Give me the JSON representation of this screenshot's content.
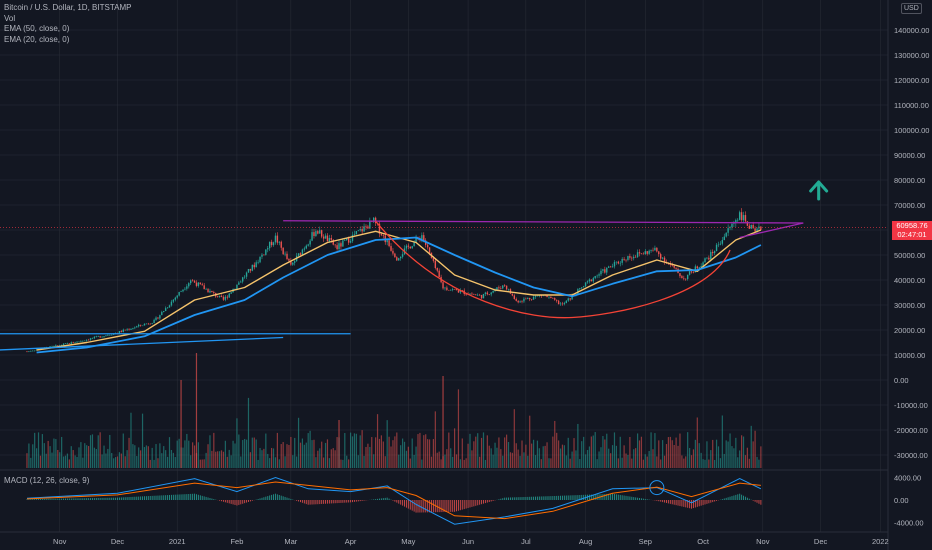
{
  "legend": {
    "symbol": "Bitcoin / U.S. Dollar, 1D, BITSTAMP",
    "vol": "Vol",
    "ema50": "EMA (50, close, 0)",
    "ema20": "EMA (20, close, 0)",
    "macd": "MACD (12, 26, close, 9)"
  },
  "currency_badge": "USD",
  "last_price": {
    "value": "60958.76",
    "countdown": "02:47:01"
  },
  "colors": {
    "background": "#131722",
    "up": "#26a69a",
    "down": "#ef5350",
    "ema20": "#f5c36b",
    "ema50": "#2196f3",
    "resistance": "#9c27b0",
    "cup": "#f44336",
    "arrow": "#22ab94",
    "price_tag": "#f23645"
  },
  "icons": {
    "target": "up-arrow-icon"
  },
  "chart_data": [
    {
      "type": "candlestick",
      "title": "Bitcoin / U.S. Dollar, 1D, BITSTAMP",
      "x_ticks": [
        "Nov",
        "Dec",
        "2021",
        "Feb",
        "Mar",
        "Apr",
        "May",
        "Jun",
        "Jul",
        "Aug",
        "Sep",
        "Oct",
        "Nov",
        "Dec",
        "2022"
      ],
      "y_ticks": [
        "140000.00",
        "130000.00",
        "120000.00",
        "110000.00",
        "100000.00",
        "90000.00",
        "80000.00",
        "70000.00",
        "60000.00",
        "50000.00",
        "40000.00",
        "30000.00",
        "20000.00",
        "10000.00",
        "0.00",
        "-10000.00",
        "-20000.00",
        "-30000.00"
      ],
      "ylim": [
        -34000,
        150000
      ],
      "series": [
        {
          "name": "EMA (20, close, 0)",
          "x": [
            "2020-10-20",
            "2020-11-15",
            "2020-12-15",
            "2021-01-10",
            "2021-02-05",
            "2021-02-25",
            "2021-03-20",
            "2021-04-14",
            "2021-05-05",
            "2021-05-25",
            "2021-06-15",
            "2021-07-05",
            "2021-07-25",
            "2021-08-15",
            "2021-09-07",
            "2021-09-28",
            "2021-10-18",
            "2021-10-31"
          ],
          "values": [
            12000,
            15000,
            19500,
            32000,
            37000,
            46000,
            55000,
            59500,
            55000,
            42000,
            36000,
            34000,
            34000,
            42000,
            48000,
            43500,
            56000,
            60000
          ]
        },
        {
          "name": "EMA (50, close, 0)",
          "x": [
            "2020-10-20",
            "2020-11-15",
            "2020-12-15",
            "2021-01-10",
            "2021-02-05",
            "2021-02-25",
            "2021-03-20",
            "2021-04-14",
            "2021-05-05",
            "2021-05-25",
            "2021-06-15",
            "2021-07-05",
            "2021-07-25",
            "2021-08-15",
            "2021-09-07",
            "2021-09-28",
            "2021-10-18",
            "2021-10-31"
          ],
          "values": [
            11000,
            13000,
            17500,
            26000,
            32000,
            41000,
            50000,
            56000,
            57000,
            50000,
            43000,
            37000,
            33500,
            38500,
            43500,
            44000,
            49000,
            54000
          ]
        }
      ],
      "price_range": {
        "start": "2020-10-15",
        "end": "2021-10-31",
        "points": [
          [
            "2020-10-15",
            11400
          ],
          [
            "2020-11-10",
            15300
          ],
          [
            "2020-12-01",
            19000
          ],
          [
            "2020-12-20",
            23500
          ],
          [
            "2021-01-08",
            40000
          ],
          [
            "2021-01-25",
            32000
          ],
          [
            "2021-02-10",
            46000
          ],
          [
            "2021-02-21",
            57000
          ],
          [
            "2021-03-01",
            45500
          ],
          [
            "2021-03-14",
            60000
          ],
          [
            "2021-03-25",
            53000
          ],
          [
            "2021-04-13",
            63500
          ],
          [
            "2021-04-25",
            49000
          ],
          [
            "2021-05-08",
            58000
          ],
          [
            "2021-05-19",
            37000
          ],
          [
            "2021-06-08",
            33500
          ],
          [
            "2021-06-20",
            38000
          ],
          [
            "2021-06-26",
            31500
          ],
          [
            "2021-07-10",
            34000
          ],
          [
            "2021-07-20",
            30000
          ],
          [
            "2021-08-05",
            41000
          ],
          [
            "2021-08-22",
            49000
          ],
          [
            "2021-09-06",
            52000
          ],
          [
            "2021-09-21",
            40500
          ],
          [
            "2021-10-05",
            50000
          ],
          [
            "2021-10-20",
            66500
          ],
          [
            "2021-10-28",
            58500
          ],
          [
            "2021-10-31",
            60958.76
          ]
        ]
      },
      "annotations": [
        {
          "name": "resistance-line",
          "x": [
            "2021-02-25",
            "2021-11-22"
          ],
          "y": [
            63700,
            62800
          ]
        },
        {
          "name": "ascending-trendline",
          "x": [
            "2021-10-20",
            "2021-11-22"
          ],
          "y": [
            57000,
            62800
          ]
        },
        {
          "name": "cup-curve",
          "x": [
            "2021-04-14",
            "2021-05-20",
            "2021-07-25",
            "2021-09-15",
            "2021-10-15"
          ],
          "y": [
            63500,
            40000,
            25000,
            35000,
            52000
          ]
        },
        {
          "name": "support-line",
          "x": [
            "2020-09-01",
            "2021-04-01"
          ],
          "y": [
            18500,
            18500
          ]
        },
        {
          "name": "lower-trendline",
          "x": [
            "2020-09-01",
            "2021-02-25"
          ],
          "y": [
            11000,
            17000
          ]
        },
        {
          "name": "target-arrow",
          "x": [
            "2021-11-30"
          ],
          "y": [
            76000
          ]
        }
      ],
      "grid": true
    },
    {
      "type": "bar",
      "title": "Vol",
      "description": "daily trading volume bars, colored by candle direction"
    },
    {
      "type": "line",
      "title": "MACD (12, 26, close, 9)",
      "y_ticks": [
        "4000.00",
        "0.00",
        "-4000.00"
      ],
      "ylim": [
        -5000,
        5500
      ],
      "series": [
        {
          "name": "MACD",
          "x": [
            "2020-10-15",
            "2020-12-01",
            "2021-01-10",
            "2021-02-01",
            "2021-02-21",
            "2021-03-10",
            "2021-04-01",
            "2021-04-20",
            "2021-05-05",
            "2021-05-25",
            "2021-06-20",
            "2021-07-15",
            "2021-08-15",
            "2021-09-07",
            "2021-09-25",
            "2021-10-20",
            "2021-10-31"
          ],
          "values": [
            300,
            1200,
            3800,
            1500,
            4000,
            2000,
            1500,
            2500,
            -800,
            -4300,
            -3000,
            -1500,
            2000,
            2200,
            -500,
            3800,
            2000
          ]
        },
        {
          "name": "Signal",
          "x": [
            "2020-10-15",
            "2020-12-01",
            "2021-01-10",
            "2021-02-01",
            "2021-02-21",
            "2021-03-10",
            "2021-04-01",
            "2021-04-20",
            "2021-05-05",
            "2021-05-25",
            "2021-06-20",
            "2021-07-15",
            "2021-08-15",
            "2021-09-07",
            "2021-09-25",
            "2021-10-20",
            "2021-10-31"
          ],
          "values": [
            200,
            900,
            3000,
            2200,
            3200,
            2600,
            1800,
            2200,
            800,
            -2800,
            -3300,
            -2000,
            1200,
            2300,
            600,
            3000,
            2600
          ]
        }
      ]
    }
  ]
}
